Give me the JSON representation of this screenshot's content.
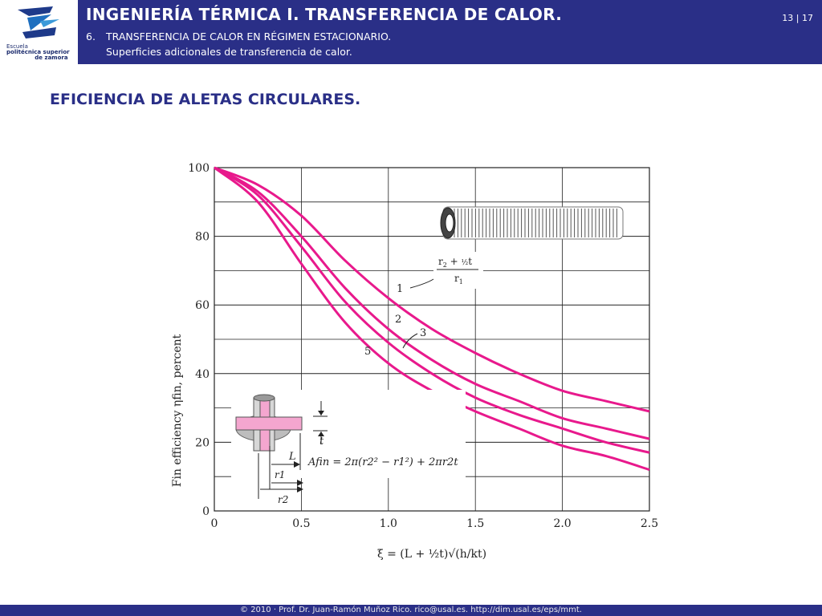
{
  "header": {
    "logo": {
      "line1": "Escuela",
      "line2": "politécnica superior",
      "line3": "de zamora"
    },
    "title": "INGENIERÍA TÉRMICA I. TRANSFERENCIA DE CALOR.",
    "section_number": "6.",
    "section_label": "TRANSFERENCIA DE CALOR EN RÉGIMEN ESTACIONARIO.",
    "subsection": "Superficies adicionales de transferencia de calor.",
    "page": "13 | 17"
  },
  "slide": {
    "title": "EFICIENCIA DE ALETAS CIRCULARES."
  },
  "chart_data": {
    "type": "line",
    "ylabel": "Fin efficiency ηfin, percent",
    "xlabel": "ξ = (L + ½t)√(h/kt)",
    "xlim": [
      0,
      2.5
    ],
    "ylim": [
      0,
      100
    ],
    "x_ticks": [
      "0",
      "0.5",
      "1.0",
      "1.5",
      "2.0",
      "2.5"
    ],
    "y_ticks": [
      "0",
      "20",
      "40",
      "60",
      "80",
      "100"
    ],
    "grid": true,
    "parameter_label": "(r2 + ½t)/r1",
    "x": [
      0,
      0.25,
      0.5,
      0.75,
      1.0,
      1.25,
      1.5,
      1.75,
      2.0,
      2.25,
      2.5
    ],
    "series": [
      {
        "name": "1",
        "values": [
          100,
          95,
          86,
          73,
          62,
          53,
          46,
          40,
          35,
          32,
          29
        ]
      },
      {
        "name": "2",
        "values": [
          100,
          93,
          80,
          65,
          53,
          44,
          37,
          32,
          27,
          24,
          21
        ]
      },
      {
        "name": "3",
        "values": [
          100,
          92,
          77,
          61,
          49,
          40,
          33,
          28,
          24,
          20,
          17
        ]
      },
      {
        "name": "5",
        "values": [
          100,
          90,
          72,
          55,
          43,
          35,
          29,
          24,
          19,
          16,
          12
        ]
      }
    ],
    "line_color": "#e8198c",
    "inset_formula": "Afin = 2π(r2² − r1²) + 2πr2t",
    "inset_labels": [
      "L",
      "t",
      "r1",
      "r2"
    ]
  },
  "footer": {
    "text": "© 2010 · Prof. Dr. Juan-Ramón Muñoz Rico. rico@usal.es. http://dim.usal.es/eps/mmt."
  }
}
